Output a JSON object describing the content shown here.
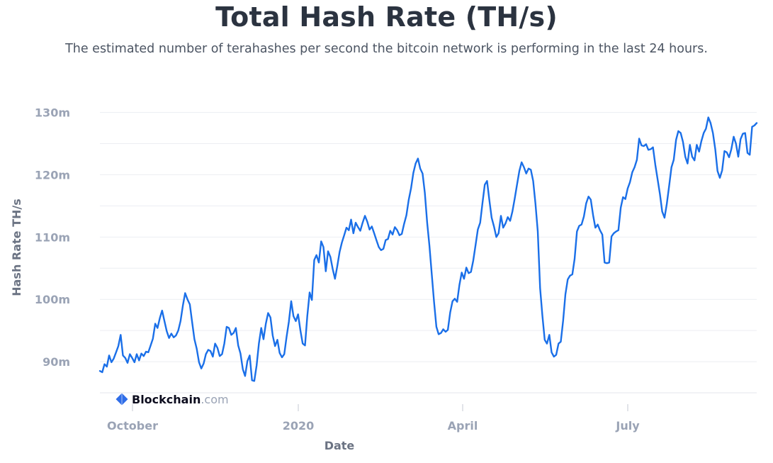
{
  "chart_data": {
    "type": "line",
    "title": "Total Hash Rate (TH/s)",
    "subtitle": "The estimated number of terahashes per second the bitcoin network is performing in the last 24 hours.",
    "xlabel": "Date",
    "ylabel": "Hash Rate TH/s",
    "y_ticks": [
      "90m",
      "100m",
      "110m",
      "120m",
      "130m"
    ],
    "x_ticks": [
      "October",
      "2020",
      "April",
      "July"
    ],
    "ylim": [
      85000000,
      132000000
    ],
    "grid": true,
    "line_color": "#1a6fe8",
    "series": [
      {
        "values": [
          88.5,
          88.3,
          89.6,
          89.2,
          91.0,
          89.9,
          90.5,
          91.5,
          92.5,
          94.3,
          91.0,
          90.6,
          89.8,
          91.2,
          90.6,
          89.9,
          91.2,
          90.2,
          91.3,
          90.9,
          91.6,
          91.5,
          92.6,
          93.7,
          96.1,
          95.4,
          97.0,
          98.2,
          96.5,
          94.9,
          93.8,
          94.5,
          93.9,
          94.2,
          95.0,
          96.5,
          99.0,
          101.0,
          100.0,
          99.2,
          96.4,
          93.6,
          92.1,
          89.9,
          88.9,
          89.7,
          91.2,
          91.9,
          91.7,
          90.8,
          92.9,
          92.2,
          90.9,
          91.2,
          92.9,
          95.6,
          95.4,
          94.3,
          94.6,
          95.4,
          92.6,
          91.3,
          88.8,
          87.7,
          90.1,
          91.0,
          87.0,
          86.9,
          89.4,
          92.9,
          95.4,
          93.6,
          96.1,
          97.8,
          97.1,
          94.2,
          92.5,
          93.5,
          91.4,
          90.7,
          91.2,
          94.0,
          96.4,
          99.7,
          97.3,
          96.5,
          97.6,
          95.0,
          92.9,
          92.6,
          97.3,
          101.1,
          99.9,
          106.3,
          107.1,
          105.9,
          109.3,
          108.4,
          104.5,
          107.7,
          106.8,
          104.9,
          103.3,
          105.3,
          107.6,
          109.1,
          110.3,
          111.5,
          111.1,
          112.8,
          110.6,
          112.3,
          111.6,
          111.0,
          112.3,
          113.4,
          112.5,
          111.2,
          111.7,
          110.6,
          109.5,
          108.4,
          107.9,
          108.1,
          109.5,
          109.7,
          111.0,
          110.4,
          111.6,
          111.1,
          110.3,
          110.5,
          112.1,
          113.5,
          116.0,
          117.8,
          120.3,
          121.8,
          122.6,
          121.0,
          120.2,
          117.1,
          112.3,
          108.6,
          104.0,
          99.6,
          95.6,
          94.4,
          94.6,
          95.2,
          94.8,
          95.1,
          97.9,
          99.7,
          100.1,
          99.6,
          102.3,
          104.3,
          103.3,
          105.1,
          104.2,
          104.4,
          106.2,
          108.7,
          111.2,
          112.3,
          115.4,
          118.4,
          119.0,
          115.9,
          113.1,
          111.7,
          110.0,
          110.6,
          113.4,
          111.5,
          112.2,
          113.2,
          112.6,
          114.1,
          116.2,
          118.4,
          120.6,
          122.0,
          121.2,
          120.2,
          121.0,
          120.8,
          119.0,
          115.4,
          110.9,
          101.8,
          97.4,
          93.5,
          92.9,
          94.3,
          91.5,
          90.8,
          91.1,
          92.9,
          93.2,
          96.6,
          100.8,
          103.2,
          103.8,
          104.0,
          106.5,
          110.9,
          111.8,
          112.0,
          113.3,
          115.4,
          116.5,
          116.0,
          113.5,
          111.5,
          112.0,
          111.1,
          110.4,
          105.9,
          105.8,
          105.9,
          110.1,
          110.6,
          110.9,
          111.1,
          114.7,
          116.4,
          116.1,
          117.8,
          118.8,
          120.4,
          121.2,
          122.4,
          125.8,
          124.7,
          124.6,
          124.9,
          124.0,
          124.1,
          124.4,
          121.6,
          119.3,
          116.9,
          114.1,
          113.1,
          115.3,
          118.2,
          121.2,
          122.4,
          125.6,
          127.0,
          126.7,
          125.3,
          122.9,
          121.8,
          124.8,
          122.9,
          122.3,
          124.8,
          123.7,
          125.4,
          126.7,
          127.4,
          129.2,
          128.3,
          126.7,
          124.1,
          120.6,
          119.5,
          120.7,
          123.8,
          123.6,
          122.8,
          124.1,
          126.1,
          125.0,
          122.9,
          125.7,
          126.6,
          126.7,
          123.5,
          123.2,
          127.7,
          127.9,
          128.3
        ]
      }
    ]
  },
  "watermark": {
    "brand": "Blockchain",
    "domain": ".com",
    "logo_color": "#2f6de8"
  }
}
